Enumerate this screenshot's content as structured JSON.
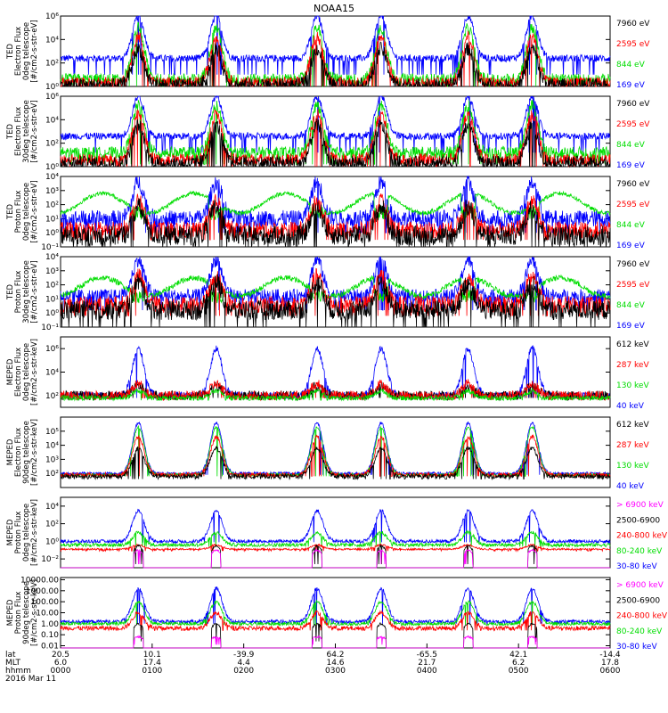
{
  "title": "NOAA15",
  "colors": {
    "black": "#000000",
    "red": "#ff0000",
    "green": "#00dd00",
    "blue": "#0000ff",
    "magenta": "#ff00ff"
  },
  "chart_data": {
    "type": "line",
    "title": "NOAA15",
    "x_axis": {
      "rows": [
        {
          "label": "lat",
          "values": [
            "20.5",
            "10.1",
            "-39.9",
            "64.2",
            "-65.5",
            "42.1",
            "-14.4"
          ]
        },
        {
          "label": "MLT",
          "values": [
            "6.0",
            "17.4",
            "4.4",
            "14.6",
            "21.7",
            "6.2",
            "17.8"
          ]
        },
        {
          "label": "hhmm",
          "values": [
            "0000",
            "0100",
            "0200",
            "0300",
            "0400",
            "0500",
            "0600"
          ]
        }
      ],
      "date": "2016 Mar 11",
      "range_hours": [
        0,
        6
      ]
    },
    "panels": [
      {
        "ylabel": [
          "TED",
          "Electron Flux",
          "0deg telescope",
          "[#/cm2-s-str-eV]"
        ],
        "yscale": "log",
        "ylim_exp": [
          0,
          6
        ],
        "ticks": [
          {
            "exp": 0,
            "label": "10⁰"
          },
          {
            "exp": 2,
            "label": "10²"
          },
          {
            "exp": 4,
            "label": "10⁴"
          },
          {
            "exp": 6,
            "label": "10⁶"
          }
        ],
        "legend": [
          {
            "label": "7960 eV",
            "color": "black"
          },
          {
            "label": "2595 eV",
            "color": "red"
          },
          {
            "label": "844 eV",
            "color": "green"
          },
          {
            "label": "169 eV",
            "color": "blue"
          }
        ],
        "series": [
          {
            "color": "blue",
            "base": 2.4,
            "peak": 6.0,
            "floor": 1.0,
            "noise": 0.3
          },
          {
            "color": "green",
            "base": 0.6,
            "peak": 5.0,
            "floor": 0.0,
            "noise": 0.5
          },
          {
            "color": "red",
            "base": 0.3,
            "peak": 4.3,
            "floor": 0.0,
            "noise": 0.5
          },
          {
            "color": "black",
            "base": 0.1,
            "peak": 3.2,
            "floor": 0.0,
            "noise": 0.6
          }
        ]
      },
      {
        "ylabel": [
          "TED",
          "Electron Flux",
          "30deg telescope",
          "[#/cm2-s-str-eV]"
        ],
        "yscale": "log",
        "ylim_exp": [
          0,
          6
        ],
        "ticks": [
          {
            "exp": 0,
            "label": "10⁰"
          },
          {
            "exp": 2,
            "label": "10²"
          },
          {
            "exp": 4,
            "label": "10⁴"
          },
          {
            "exp": 6,
            "label": "10⁶"
          }
        ],
        "legend": [
          {
            "label": "7960 eV",
            "color": "black"
          },
          {
            "label": "2595 eV",
            "color": "red"
          },
          {
            "label": "844 eV",
            "color": "green"
          },
          {
            "label": "169 eV",
            "color": "blue"
          }
        ],
        "series": [
          {
            "color": "blue",
            "base": 2.6,
            "peak": 6.0,
            "floor": 1.2,
            "noise": 0.3
          },
          {
            "color": "green",
            "base": 1.2,
            "peak": 5.2,
            "floor": 0.2,
            "noise": 0.5
          },
          {
            "color": "red",
            "base": 0.6,
            "peak": 4.5,
            "floor": 0.0,
            "noise": 0.5
          },
          {
            "color": "black",
            "base": 0.3,
            "peak": 3.5,
            "floor": 0.0,
            "noise": 0.6
          }
        ]
      },
      {
        "ylabel": [
          "TED",
          "Proton Flux",
          "0deg telescope",
          "[#/cm2-s-str-eV]"
        ],
        "yscale": "log",
        "ylim_exp": [
          -1,
          4
        ],
        "ticks": [
          {
            "exp": -1,
            "label": "10⁻¹"
          },
          {
            "exp": 0,
            "label": "10⁰"
          },
          {
            "exp": 1,
            "label": "10¹"
          },
          {
            "exp": 2,
            "label": "10²"
          },
          {
            "exp": 3,
            "label": "10³"
          },
          {
            "exp": 4,
            "label": "10⁴"
          }
        ],
        "legend": [
          {
            "label": "7960 eV",
            "color": "black"
          },
          {
            "label": "2595 eV",
            "color": "red"
          },
          {
            "label": "844 eV",
            "color": "green"
          },
          {
            "label": "169 eV",
            "color": "blue"
          }
        ],
        "series": [
          {
            "color": "blue",
            "base": 1.0,
            "peak": 3.6,
            "floor": 0.0,
            "noise": 0.6
          },
          {
            "color": "green",
            "base": 1.4,
            "peak": 2.8,
            "floor": 0.8,
            "noise": 0.15,
            "wave": true
          },
          {
            "color": "red",
            "base": 0.2,
            "peak": 2.2,
            "floor": -0.5,
            "noise": 0.6
          },
          {
            "color": "black",
            "base": -0.2,
            "peak": 1.8,
            "floor": -1.0,
            "noise": 0.7
          }
        ]
      },
      {
        "ylabel": [
          "TED",
          "Proton Flux",
          "30deg telescope",
          "[#/cm2-s-str-eV]"
        ],
        "yscale": "log",
        "ylim_exp": [
          -1,
          4
        ],
        "ticks": [
          {
            "exp": -1,
            "label": "10⁻¹"
          },
          {
            "exp": 0,
            "label": "10⁰"
          },
          {
            "exp": 1,
            "label": "10¹"
          },
          {
            "exp": 2,
            "label": "10²"
          },
          {
            "exp": 3,
            "label": "10³"
          },
          {
            "exp": 4,
            "label": "10⁴"
          }
        ],
        "legend": [
          {
            "label": "7960 eV",
            "color": "black"
          },
          {
            "label": "2595 eV",
            "color": "red"
          },
          {
            "label": "844 eV",
            "color": "green"
          },
          {
            "label": "169 eV",
            "color": "blue"
          }
        ],
        "series": [
          {
            "color": "blue",
            "base": 1.2,
            "peak": 3.8,
            "floor": 0.2,
            "noise": 0.5
          },
          {
            "color": "green",
            "base": 1.2,
            "peak": 2.5,
            "floor": 0.6,
            "noise": 0.2,
            "wave": true
          },
          {
            "color": "red",
            "base": 0.6,
            "peak": 2.6,
            "floor": -0.2,
            "noise": 0.6
          },
          {
            "color": "black",
            "base": 0.2,
            "peak": 2.2,
            "floor": -1.0,
            "noise": 0.7
          }
        ]
      },
      {
        "ylabel": [
          "MEPED",
          "Electron Flux",
          "0deg telescope",
          "[#/cm2-s-str-keV]"
        ],
        "yscale": "log",
        "ylim_exp": [
          1,
          7
        ],
        "ticks": [
          {
            "exp": 2,
            "label": "10²"
          },
          {
            "exp": 4,
            "label": "10⁴"
          },
          {
            "exp": 6,
            "label": "10⁶"
          }
        ],
        "legend": [
          {
            "label": "612 keV",
            "color": "black"
          },
          {
            "label": "287 keV",
            "color": "red"
          },
          {
            "label": "130 keV",
            "color": "green"
          },
          {
            "label": "40 keV",
            "color": "blue"
          }
        ],
        "series": [
          {
            "color": "blue",
            "base": 2.0,
            "peak": 6.0,
            "floor": 1.8,
            "noise": 0.3
          },
          {
            "color": "black",
            "base": 2.0,
            "peak": 2.8,
            "floor": 1.8,
            "noise": 0.4
          },
          {
            "color": "red",
            "base": 2.0,
            "peak": 3.0,
            "floor": 1.8,
            "noise": 0.4
          },
          {
            "color": "green",
            "base": 1.8,
            "peak": 2.4,
            "floor": 1.6,
            "noise": 0.2
          }
        ]
      },
      {
        "ylabel": [
          "MEPED",
          "Electron Flux",
          "90deg telescope",
          "[#/cm2-s-str-keV]"
        ],
        "yscale": "log",
        "ylim_exp": [
          1,
          6
        ],
        "ticks": [
          {
            "exp": 2,
            "label": "10²"
          },
          {
            "exp": 3,
            "label": "10³"
          },
          {
            "exp": 4,
            "label": "10⁴"
          },
          {
            "exp": 5,
            "label": "10⁵"
          }
        ],
        "legend": [
          {
            "label": "612 keV",
            "color": "black"
          },
          {
            "label": "287 keV",
            "color": "red"
          },
          {
            "label": "130 keV",
            "color": "green"
          },
          {
            "label": "40 keV",
            "color": "blue"
          }
        ],
        "series": [
          {
            "color": "blue",
            "base": 2.0,
            "peak": 5.6,
            "floor": 1.9,
            "noise": 0.1
          },
          {
            "color": "green",
            "base": 1.9,
            "peak": 5.3,
            "floor": 1.8,
            "noise": 0.1
          },
          {
            "color": "red",
            "base": 1.9,
            "peak": 4.6,
            "floor": 1.8,
            "noise": 0.15
          },
          {
            "color": "black",
            "base": 1.8,
            "peak": 3.8,
            "floor": 1.6,
            "noise": 0.15
          }
        ]
      },
      {
        "ylabel": [
          "MEPED",
          "Proton Flux",
          "0deg telescope",
          "[#/cm2-s-str-keV]"
        ],
        "yscale": "log",
        "ylim_exp": [
          -3,
          5
        ],
        "ticks": [
          {
            "exp": -2,
            "label": "10⁻²"
          },
          {
            "exp": 0,
            "label": "10⁰"
          },
          {
            "exp": 2,
            "label": "10²"
          },
          {
            "exp": 4,
            "label": "10⁴"
          }
        ],
        "legend": [
          {
            "label": "> 6900 keV",
            "color": "magenta"
          },
          {
            "label": "2500-6900",
            "color": "black"
          },
          {
            "label": "240-800 keV",
            "color": "red"
          },
          {
            "label": "80-240 keV",
            "color": "green"
          },
          {
            "label": "30-80 keV",
            "color": "blue"
          }
        ],
        "series": [
          {
            "color": "blue",
            "base": 0.0,
            "peak": 3.5,
            "floor": -0.1,
            "noise": 0.2
          },
          {
            "color": "green",
            "base": -0.4,
            "peak": 1.0,
            "floor": -0.6,
            "noise": 0.2
          },
          {
            "color": "red",
            "base": -0.9,
            "peak": -0.4,
            "floor": -1.1,
            "noise": 0.1
          },
          {
            "color": "black",
            "base": -2.5,
            "peak": -0.5,
            "floor": -2.6,
            "noise": 0.1,
            "sparse": true
          },
          {
            "color": "magenta",
            "base": -2.5,
            "peak": -1.0,
            "floor": -2.6,
            "noise": 0.1,
            "sparse": true
          }
        ]
      },
      {
        "ylabel": [
          "MEPED",
          "Proton Flux",
          "90deg telescope",
          "[#/cm2-s-str-keV]"
        ],
        "yscale": "log",
        "ylim_exp": [
          -2.2,
          4.2
        ],
        "ticks": [
          {
            "exp": -2,
            "label": "0.01"
          },
          {
            "exp": -1,
            "label": "0.10"
          },
          {
            "exp": 0,
            "label": "1.00"
          },
          {
            "exp": 1,
            "label": "10.00"
          },
          {
            "exp": 2,
            "label": "100.00"
          },
          {
            "exp": 3,
            "label": "1000.00"
          },
          {
            "exp": 4,
            "label": "10000.00"
          }
        ],
        "legend": [
          {
            "label": "> 6900 keV",
            "color": "magenta"
          },
          {
            "label": "2500-6900",
            "color": "black"
          },
          {
            "label": "240-800 keV",
            "color": "red"
          },
          {
            "label": "80-240 keV",
            "color": "green"
          },
          {
            "label": "30-80 keV",
            "color": "blue"
          }
        ],
        "series": [
          {
            "color": "blue",
            "base": 0.2,
            "peak": 3.2,
            "floor": 0.0,
            "noise": 0.15
          },
          {
            "color": "green",
            "base": 0.0,
            "peak": 2.0,
            "floor": -0.1,
            "noise": 0.15
          },
          {
            "color": "red",
            "base": -0.4,
            "peak": 1.0,
            "floor": -0.6,
            "noise": 0.2
          },
          {
            "color": "black",
            "base": -1.5,
            "peak": 0.0,
            "floor": -1.6,
            "noise": 0.1,
            "sparse": true
          },
          {
            "color": "magenta",
            "base": -1.8,
            "peak": -1.2,
            "floor": -1.9,
            "noise": 0.1,
            "sparse": true
          }
        ]
      }
    ],
    "events_hours": [
      0.85,
      1.7,
      2.8,
      3.5,
      4.45,
      5.15
    ]
  }
}
